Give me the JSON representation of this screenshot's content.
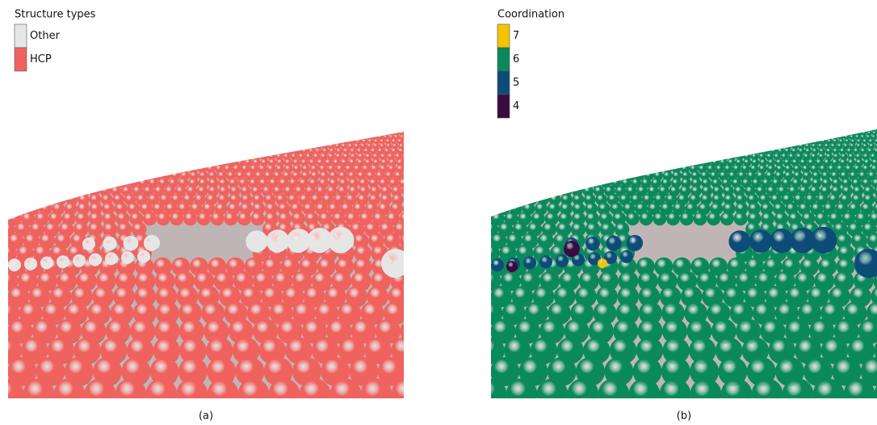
{
  "panels": [
    {
      "legend_title": "Structure types",
      "legend": [
        {
          "label": "Other",
          "color": "#e6e6e6"
        },
        {
          "label": "HCP",
          "color": "#f0625e"
        }
      ],
      "caption": "(a)"
    },
    {
      "legend_title": "Coordination",
      "legend": [
        {
          "label": "7",
          "color": "#f5c400"
        },
        {
          "label": "6",
          "color": "#0a8a5c"
        },
        {
          "label": "5",
          "color": "#0d4c78"
        },
        {
          "label": "4",
          "color": "#3b0a40"
        }
      ],
      "caption": "(b)"
    }
  ]
}
